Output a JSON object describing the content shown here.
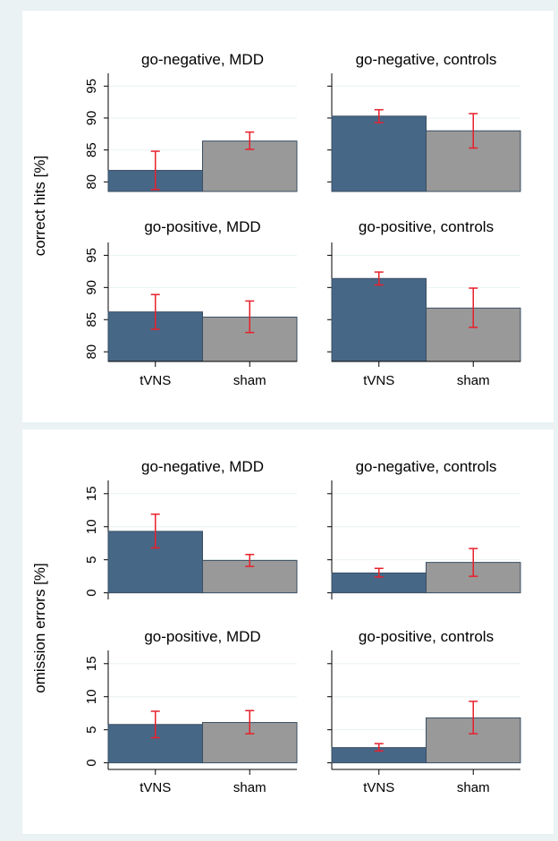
{
  "chart_data": [
    {
      "type": "bar",
      "ylabel": "correct hits [%]",
      "ylim": [
        78.5,
        97
      ],
      "yticks": [
        80,
        85,
        90,
        95
      ],
      "categories": [
        "tVNS",
        "sham"
      ],
      "colors": {
        "tVNS": "#476787",
        "sham": "#999999",
        "error": "#e8202a"
      },
      "panels": [
        {
          "title": "go-negative, MDD",
          "values": [
            81.8,
            86.4
          ],
          "error_low": [
            78.8,
            85.1
          ],
          "error_high": [
            84.8,
            87.8
          ]
        },
        {
          "title": "go-negative, controls",
          "values": [
            90.3,
            88.0
          ],
          "error_low": [
            89.3,
            85.3
          ],
          "error_high": [
            91.3,
            90.7
          ]
        },
        {
          "title": "go-positive, MDD",
          "values": [
            86.2,
            85.4
          ],
          "error_low": [
            83.5,
            83.0
          ],
          "error_high": [
            88.9,
            87.9
          ]
        },
        {
          "title": "go-positive, controls",
          "values": [
            91.4,
            86.8
          ],
          "error_low": [
            90.4,
            83.8
          ],
          "error_high": [
            92.4,
            89.9
          ]
        }
      ]
    },
    {
      "type": "bar",
      "ylabel": "omission errors [%]",
      "ylim": [
        -1,
        17
      ],
      "yticks": [
        0,
        5,
        10,
        15
      ],
      "categories": [
        "tVNS",
        "sham"
      ],
      "colors": {
        "tVNS": "#476787",
        "sham": "#999999",
        "error": "#e8202a"
      },
      "panels": [
        {
          "title": "go-negative, MDD",
          "values": [
            9.3,
            4.9
          ],
          "error_low": [
            6.8,
            4.0
          ],
          "error_high": [
            11.9,
            5.8
          ]
        },
        {
          "title": "go-negative, controls",
          "values": [
            3.0,
            4.6
          ],
          "error_low": [
            2.4,
            2.5
          ],
          "error_high": [
            3.7,
            6.7
          ]
        },
        {
          "title": "go-positive, MDD",
          "values": [
            5.8,
            6.1
          ],
          "error_low": [
            3.8,
            4.4
          ],
          "error_high": [
            7.8,
            7.9
          ]
        },
        {
          "title": "go-positive, controls",
          "values": [
            2.3,
            6.8
          ],
          "error_low": [
            1.8,
            4.4
          ],
          "error_high": [
            2.9,
            9.3
          ]
        }
      ]
    }
  ]
}
